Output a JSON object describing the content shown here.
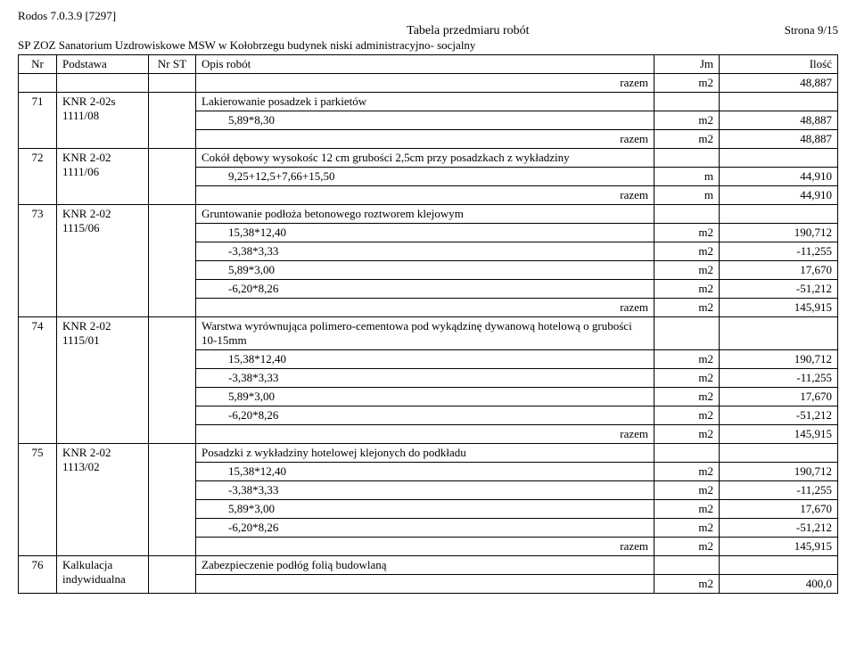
{
  "doc_id": "Rodos 7.0.3.9 [7297]",
  "title": "Tabela przedmiaru robót",
  "page": "Strona 9/15",
  "subheader": "SP ZOZ Sanatorium Uzdrowiskowe MSW w Kołobrzegu budynek niski administracyjno- socjalny",
  "columns": {
    "nr": "Nr",
    "podstawa": "Podstawa",
    "nrst": "Nr ST",
    "opis": "Opis robót",
    "jm": "Jm",
    "ilosc": "Ilość"
  },
  "top_row": {
    "label": "razem",
    "jm": "m2",
    "val": "48,887"
  },
  "items": [
    {
      "nr": "71",
      "podstawa": "KNR 2-02s 1111/08",
      "opis": "Lakierowanie posadzek i parkietów",
      "lines": [
        {
          "calc": "5,89*8,30",
          "jm": "m2",
          "val": "48,887"
        }
      ],
      "razm": {
        "label": "razem",
        "jm": "m2",
        "val": "48,887"
      }
    },
    {
      "nr": "72",
      "podstawa": "KNR 2-02 1111/06",
      "opis": "Cokół dębowy wysokośc 12 cm grubości 2,5cm   przy posadzkach z wykładziny",
      "lines": [
        {
          "calc": "9,25+12,5+7,66+15,50",
          "jm": "m",
          "val": "44,910"
        }
      ],
      "razm": {
        "label": "razem",
        "jm": "m",
        "val": "44,910"
      }
    },
    {
      "nr": "73",
      "podstawa": "KNR 2-02 1115/06",
      "opis": "Gruntowanie podłoża betonowego roztworem klejowym",
      "lines": [
        {
          "calc": "15,38*12,40",
          "jm": "m2",
          "val": "190,712"
        },
        {
          "calc": "-3,38*3,33",
          "jm": "m2",
          "val": "-11,255"
        },
        {
          "calc": "5,89*3,00",
          "jm": "m2",
          "val": "17,670"
        },
        {
          "calc": "-6,20*8,26",
          "jm": "m2",
          "val": "-51,212"
        }
      ],
      "razm": {
        "label": "razem",
        "jm": "m2",
        "val": "145,915"
      }
    },
    {
      "nr": "74",
      "podstawa": "KNR 2-02 1115/01",
      "opis": "Warstwa wyrównująca polimero-cementowa pod wykądzinę dywanową hotelową o grubości 10-15mm",
      "lines": [
        {
          "calc": "15,38*12,40",
          "jm": "m2",
          "val": "190,712"
        },
        {
          "calc": "-3,38*3,33",
          "jm": "m2",
          "val": "-11,255"
        },
        {
          "calc": "5,89*3,00",
          "jm": "m2",
          "val": "17,670"
        },
        {
          "calc": "-6,20*8,26",
          "jm": "m2",
          "val": "-51,212"
        }
      ],
      "razm": {
        "label": "razem",
        "jm": "m2",
        "val": "145,915"
      }
    },
    {
      "nr": "75",
      "podstawa": "KNR 2-02 1113/02",
      "opis": "Posadzki  z wykładziny hotelowej  klejonych do podkładu",
      "lines": [
        {
          "calc": "15,38*12,40",
          "jm": "m2",
          "val": "190,712"
        },
        {
          "calc": "-3,38*3,33",
          "jm": "m2",
          "val": "-11,255"
        },
        {
          "calc": "5,89*3,00",
          "jm": "m2",
          "val": "17,670"
        },
        {
          "calc": "-6,20*8,26",
          "jm": "m2",
          "val": "-51,212"
        }
      ],
      "razm": {
        "label": "razem",
        "jm": "m2",
        "val": "145,915"
      }
    },
    {
      "nr": "76",
      "podstawa": "Kalkulacja indywidualna",
      "opis": "Zabezpieczenie podłóg folią budowlaną",
      "lines": [
        {
          "calc": "",
          "jm": "m2",
          "val": "400,0"
        }
      ]
    }
  ]
}
